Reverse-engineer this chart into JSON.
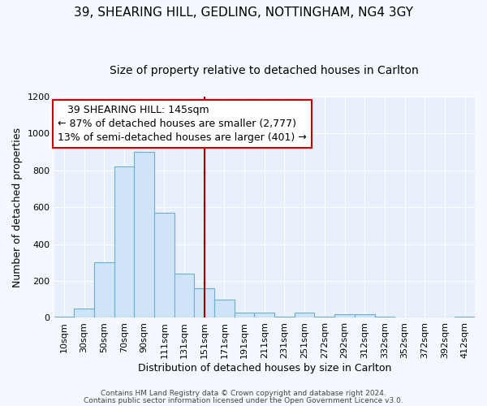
{
  "title_line1": "39, SHEARING HILL, GEDLING, NOTTINGHAM, NG4 3GY",
  "title_line2": "Size of property relative to detached houses in Carlton",
  "xlabel": "Distribution of detached houses by size in Carlton",
  "ylabel": "Number of detached properties",
  "footer_line1": "Contains HM Land Registry data © Crown copyright and database right 2024.",
  "footer_line2": "Contains public sector information licensed under the Open Government Licence v3.0.",
  "bar_labels": [
    "10sqm",
    "30sqm",
    "50sqm",
    "70sqm",
    "90sqm",
    "111sqm",
    "131sqm",
    "151sqm",
    "171sqm",
    "191sqm",
    "211sqm",
    "231sqm",
    "251sqm",
    "272sqm",
    "292sqm",
    "312sqm",
    "332sqm",
    "352sqm",
    "372sqm",
    "392sqm",
    "412sqm"
  ],
  "bar_values": [
    5,
    50,
    300,
    820,
    900,
    570,
    240,
    160,
    100,
    30,
    30,
    5,
    30,
    5,
    20,
    20,
    5,
    0,
    0,
    0,
    5
  ],
  "bar_color": "#d0e4f7",
  "bar_edge_color": "#6aaed6",
  "vline_x": 7,
  "vline_color": "#a00000",
  "annotation_text_line1": "   39 SHEARING HILL: 145sqm",
  "annotation_text_line2": "← 87% of detached houses are smaller (2,777)",
  "annotation_text_line3": "13% of semi-detached houses are larger (401) →",
  "ylim": [
    0,
    1200
  ],
  "yticks": [
    0,
    200,
    400,
    600,
    800,
    1000,
    1200
  ],
  "background_color": "#e8f0fb",
  "grid_color": "#ffffff",
  "fig_bg_color": "#f5f8fe",
  "title_fontsize": 11,
  "subtitle_fontsize": 10,
  "axis_label_fontsize": 9,
  "tick_fontsize": 8,
  "annotation_fontsize": 9
}
